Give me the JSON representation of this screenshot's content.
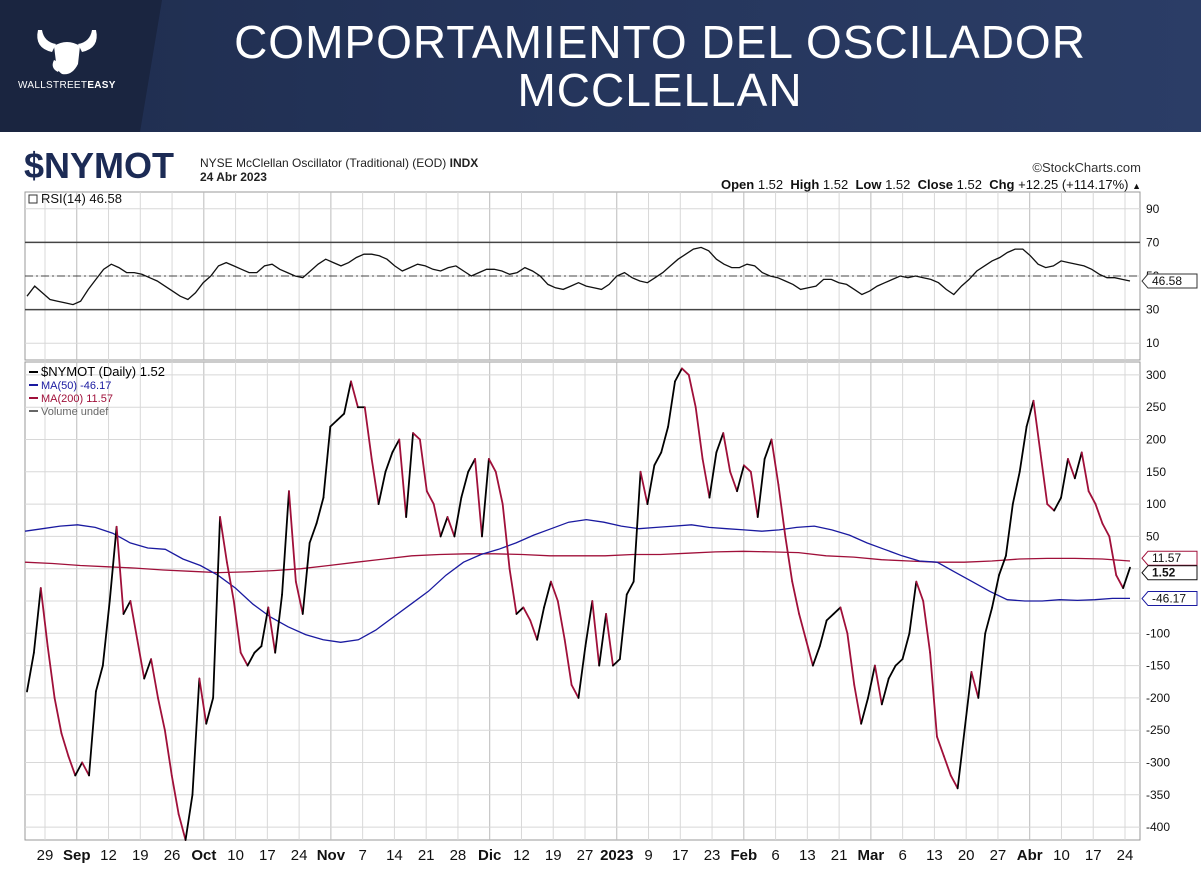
{
  "banner": {
    "title": "COMPORTAMIENTO DEL OSCILADOR MCCLELLAN",
    "brand_light": "WALLSTREET",
    "brand_bold": "EASY"
  },
  "header": {
    "symbol": "$NYMOT",
    "description": "NYSE McClellan Oscillator (Traditional) (EOD)",
    "exchange": "INDX",
    "date": "24 Abr 2023",
    "source": "StockCharts.com",
    "ohlc": {
      "open_label": "Open",
      "open": "1.52",
      "high_label": "High",
      "high": "1.52",
      "low_label": "Low",
      "low": "1.52",
      "close_label": "Close",
      "close": "1.52",
      "chg_label": "Chg",
      "chg": "+12.25 (+114.17%)"
    }
  },
  "colors": {
    "banner": "#24345a",
    "price_line": "#000000",
    "ma50": "#1a1aa0",
    "ma200": "#a0103a",
    "grid": "#d8d8d8"
  },
  "chart_data": [
    {
      "type": "line",
      "panel": "rsi",
      "legend": "RSI(14) 46.58",
      "last_value_label": "46.58",
      "ylim": [
        0,
        100
      ],
      "y_ticks": [
        10,
        30,
        50,
        70,
        90
      ],
      "reference_lines": [
        30,
        50,
        70
      ],
      "series": [
        {
          "name": "RSI(14)",
          "values": [
            38,
            44,
            40,
            36,
            35,
            34,
            33,
            35,
            42,
            48,
            54,
            57,
            55,
            52,
            52,
            51,
            49,
            47,
            44,
            41,
            38,
            36,
            40,
            46,
            50,
            56,
            58,
            56,
            54,
            52,
            52,
            56,
            57,
            54,
            52,
            50,
            49,
            53,
            57,
            60,
            58,
            56,
            58,
            61,
            63,
            63,
            62,
            60,
            56,
            53,
            55,
            57,
            56,
            54,
            53,
            55,
            56,
            53,
            50,
            52,
            54,
            54,
            53,
            51,
            52,
            55,
            53,
            50,
            45,
            43,
            42,
            44,
            46,
            44,
            43,
            42,
            45,
            50,
            52,
            49,
            47,
            46,
            49,
            52,
            56,
            60,
            63,
            66,
            67,
            65,
            60,
            57,
            55,
            55,
            57,
            56,
            52,
            50,
            49,
            47,
            45,
            42,
            43,
            44,
            48,
            48,
            46,
            45,
            42,
            39,
            41,
            44,
            46,
            48,
            50,
            49,
            50,
            49,
            48,
            46,
            42,
            39,
            44,
            48,
            53,
            56,
            59,
            61,
            64,
            66,
            66,
            62,
            57,
            55,
            56,
            59,
            58,
            57,
            56,
            54,
            51,
            49,
            49,
            48,
            47
          ]
        }
      ]
    },
    {
      "type": "line",
      "panel": "price",
      "x_ticks": [
        "29",
        "Sep",
        "12",
        "19",
        "26",
        "Oct",
        "10",
        "17",
        "24",
        "Nov",
        "7",
        "14",
        "21",
        "28",
        "Dic",
        "12",
        "19",
        "27",
        "2023",
        "9",
        "17",
        "23",
        "Feb",
        "6",
        "13",
        "21",
        "Mar",
        "6",
        "13",
        "20",
        "27",
        "Abr",
        "10",
        "17",
        "24"
      ],
      "ylim": [
        -420,
        320
      ],
      "y_ticks": [
        -400,
        -350,
        -300,
        -250,
        -200,
        -150,
        -100,
        -50,
        0,
        50,
        100,
        150,
        200,
        250,
        300
      ],
      "y_tick_labels": [
        "-400",
        "-350",
        "-300",
        "-250",
        "-200",
        "-150",
        "-100",
        "-50",
        "",
        "50",
        "100",
        "150",
        "200",
        "250",
        "300"
      ],
      "legend": [
        {
          "label": "$NYMOT (Daily) 1.52"
        },
        {
          "label": "MA(50) -46.17"
        },
        {
          "label": "MA(200) 11.57"
        },
        {
          "label": "Volume undef"
        }
      ],
      "last_value_labels": {
        "price": "1.52",
        "ma200": "11.57",
        "ma50": "-46.17"
      },
      "series": [
        {
          "name": "$NYMOT (Daily)",
          "values": [
            -190,
            -130,
            -30,
            -120,
            -200,
            -255,
            -290,
            -320,
            -300,
            -320,
            -190,
            -150,
            -50,
            65,
            -70,
            -50,
            -110,
            -170,
            -140,
            -200,
            -250,
            -320,
            -380,
            -420,
            -350,
            -170,
            -240,
            -200,
            80,
            10,
            -50,
            -130,
            -150,
            -130,
            -120,
            -60,
            -130,
            -40,
            120,
            -20,
            -70,
            40,
            70,
            110,
            220,
            230,
            240,
            290,
            250,
            250,
            170,
            100,
            150,
            180,
            200,
            80,
            210,
            200,
            120,
            100,
            50,
            80,
            50,
            110,
            150,
            170,
            50,
            170,
            150,
            100,
            0,
            -70,
            -60,
            -80,
            -110,
            -60,
            -20,
            -50,
            -110,
            -180,
            -200,
            -120,
            -50,
            -150,
            -70,
            -150,
            -140,
            -40,
            -20,
            150,
            100,
            160,
            180,
            220,
            290,
            310,
            300,
            250,
            170,
            110,
            180,
            210,
            150,
            120,
            160,
            150,
            80,
            170,
            200,
            130,
            50,
            -20,
            -70,
            -110,
            -150,
            -120,
            -80,
            -70,
            -60,
            -100,
            -180,
            -240,
            -200,
            -150,
            -210,
            -170,
            -150,
            -140,
            -100,
            -20,
            -50,
            -130,
            -260,
            -290,
            -320,
            -340,
            -250,
            -160,
            -200,
            -100,
            -60,
            -10,
            20,
            100,
            150,
            220,
            260,
            180,
            100,
            90,
            110,
            170,
            140,
            180,
            120,
            100,
            70,
            50,
            -10,
            -30,
            1.52
          ]
        },
        {
          "name": "MA(50)",
          "values": [
            58,
            62,
            66,
            68,
            64,
            55,
            40,
            32,
            30,
            15,
            5,
            -10,
            -30,
            -55,
            -75,
            -90,
            -102,
            -110,
            -114,
            -110,
            -95,
            -75,
            -55,
            -35,
            -10,
            10,
            22,
            30,
            40,
            52,
            62,
            72,
            76,
            72,
            66,
            62,
            64,
            66,
            68,
            64,
            62,
            60,
            58,
            60,
            64,
            66,
            60,
            52,
            40,
            30,
            20,
            12,
            10,
            -5,
            -20,
            -35,
            -48,
            -50,
            -50,
            -48,
            -49,
            -48,
            -46,
            -46
          ]
        },
        {
          "name": "MA(200)",
          "values": [
            10,
            8,
            5,
            3,
            1,
            -2,
            -4,
            -6,
            -5,
            -3,
            0,
            5,
            10,
            15,
            20,
            22,
            23,
            23,
            22,
            20,
            20,
            20,
            22,
            22,
            24,
            26,
            27,
            26,
            25,
            20,
            18,
            14,
            12,
            10,
            10,
            12,
            15,
            16,
            16,
            15,
            12
          ]
        }
      ]
    }
  ]
}
